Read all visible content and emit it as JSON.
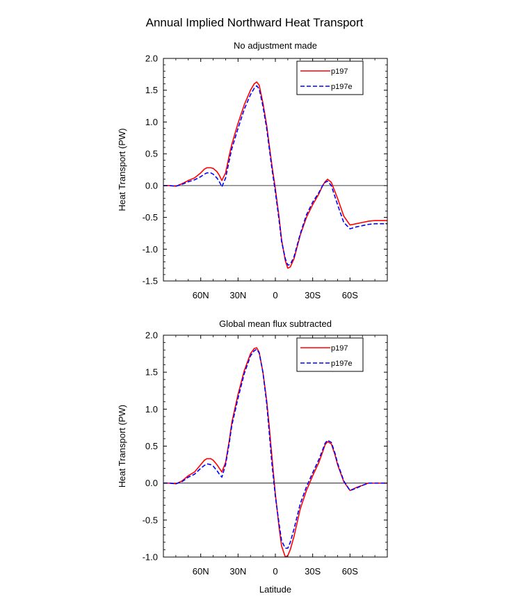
{
  "figure": {
    "title": "Annual Implied Northward Heat Transport",
    "legend_labels": [
      "p197",
      "p197e"
    ]
  },
  "chart_data": [
    {
      "type": "line",
      "title": "No adjustment made",
      "xlabel": "",
      "ylabel": "Heat Transport (PW)",
      "xlim": [
        90,
        -90
      ],
      "ylim": [
        -1.5,
        2.0
      ],
      "xticks": [
        60,
        30,
        0,
        -30,
        -60
      ],
      "xtick_labels": [
        "60N",
        "30N",
        "0",
        "30S",
        "60S"
      ],
      "yticks": [
        -1.5,
        -1.0,
        -0.5,
        0.0,
        0.5,
        1.0,
        1.5,
        2.0
      ],
      "ytick_labels": [
        "-1.5",
        "-1.0",
        "-0.5",
        "0.0",
        "0.5",
        "1.0",
        "1.5",
        "2.0"
      ],
      "legend_position": "top-right",
      "x": [
        90,
        85,
        80,
        75,
        70,
        65,
        60,
        57,
        55,
        52,
        50,
        47,
        45,
        43,
        40,
        37,
        35,
        30,
        25,
        20,
        17,
        15,
        13,
        10,
        7,
        5,
        3,
        0,
        -3,
        -5,
        -8,
        -10,
        -12,
        -15,
        -20,
        -25,
        -30,
        -35,
        -38,
        -40,
        -42,
        -45,
        -48,
        -50,
        -55,
        -60,
        -65,
        -70,
        -75,
        -80,
        -85,
        -90
      ],
      "series": [
        {
          "name": "p197",
          "color": "#ff0000",
          "dash": "solid",
          "values": [
            0.0,
            0.0,
            -0.01,
            0.03,
            0.08,
            0.12,
            0.2,
            0.26,
            0.28,
            0.28,
            0.27,
            0.22,
            0.16,
            0.08,
            0.2,
            0.48,
            0.65,
            0.98,
            1.27,
            1.5,
            1.6,
            1.63,
            1.58,
            1.3,
            0.95,
            0.65,
            0.35,
            -0.05,
            -0.5,
            -0.85,
            -1.18,
            -1.3,
            -1.28,
            -1.15,
            -0.78,
            -0.5,
            -0.3,
            -0.13,
            0.0,
            0.06,
            0.1,
            0.05,
            -0.1,
            -0.2,
            -0.48,
            -0.62,
            -0.6,
            -0.58,
            -0.56,
            -0.55,
            -0.55,
            -0.55
          ]
        },
        {
          "name": "p197e",
          "color": "#0000ff",
          "dash": "dashed",
          "values": [
            0.0,
            0.0,
            -0.01,
            0.02,
            0.06,
            0.09,
            0.14,
            0.18,
            0.2,
            0.2,
            0.18,
            0.12,
            0.06,
            -0.02,
            0.12,
            0.4,
            0.58,
            0.9,
            1.2,
            1.43,
            1.53,
            1.57,
            1.52,
            1.25,
            0.9,
            0.6,
            0.3,
            -0.1,
            -0.55,
            -0.88,
            -1.15,
            -1.25,
            -1.24,
            -1.12,
            -0.76,
            -0.46,
            -0.26,
            -0.11,
            0.0,
            0.05,
            0.07,
            0.0,
            -0.18,
            -0.3,
            -0.58,
            -0.68,
            -0.65,
            -0.63,
            -0.61,
            -0.6,
            -0.6,
            -0.6
          ]
        }
      ]
    },
    {
      "type": "line",
      "title": "Global mean flux subtracted",
      "xlabel": "Latitude",
      "ylabel": "Heat Transport (PW)",
      "xlim": [
        90,
        -90
      ],
      "ylim": [
        -1.0,
        2.0
      ],
      "xticks": [
        60,
        30,
        0,
        -30,
        -60
      ],
      "xtick_labels": [
        "60N",
        "30N",
        "0",
        "30S",
        "60S"
      ],
      "yticks": [
        -1.0,
        -0.5,
        0.0,
        0.5,
        1.0,
        1.5,
        2.0
      ],
      "ytick_labels": [
        "-1.0",
        "-0.5",
        "0.0",
        "0.5",
        "1.0",
        "1.5",
        "2.0"
      ],
      "legend_position": "top-right",
      "x": [
        90,
        85,
        80,
        75,
        70,
        65,
        60,
        57,
        55,
        52,
        50,
        47,
        45,
        43,
        40,
        37,
        35,
        30,
        25,
        20,
        17,
        15,
        13,
        10,
        7,
        5,
        3,
        0,
        -3,
        -5,
        -8,
        -10,
        -12,
        -15,
        -20,
        -25,
        -30,
        -35,
        -38,
        -40,
        -42,
        -45,
        -48,
        -50,
        -55,
        -60,
        -65,
        -70,
        -75,
        -80,
        -85,
        -90
      ],
      "series": [
        {
          "name": "p197",
          "color": "#ff0000",
          "dash": "solid",
          "values": [
            0.0,
            0.0,
            -0.01,
            0.03,
            0.1,
            0.15,
            0.25,
            0.31,
            0.33,
            0.33,
            0.31,
            0.25,
            0.2,
            0.15,
            0.28,
            0.58,
            0.82,
            1.2,
            1.52,
            1.75,
            1.82,
            1.83,
            1.77,
            1.5,
            1.12,
            0.78,
            0.4,
            -0.15,
            -0.6,
            -0.85,
            -1.0,
            -0.98,
            -0.9,
            -0.72,
            -0.35,
            -0.1,
            0.1,
            0.28,
            0.42,
            0.52,
            0.56,
            0.53,
            0.38,
            0.25,
            0.02,
            -0.1,
            -0.06,
            -0.03,
            0.0,
            0.0,
            0.0,
            0.0
          ]
        },
        {
          "name": "p197e",
          "color": "#0000ff",
          "dash": "dashed",
          "values": [
            0.0,
            0.0,
            -0.01,
            0.02,
            0.08,
            0.12,
            0.2,
            0.24,
            0.26,
            0.25,
            0.23,
            0.17,
            0.12,
            0.08,
            0.25,
            0.55,
            0.78,
            1.15,
            1.48,
            1.72,
            1.79,
            1.81,
            1.76,
            1.5,
            1.08,
            0.7,
            0.3,
            -0.18,
            -0.55,
            -0.78,
            -0.88,
            -0.88,
            -0.8,
            -0.62,
            -0.28,
            -0.05,
            0.14,
            0.32,
            0.45,
            0.54,
            0.58,
            0.55,
            0.4,
            0.27,
            0.03,
            -0.1,
            -0.07,
            -0.03,
            0.0,
            0.0,
            0.0,
            0.0
          ]
        }
      ]
    }
  ]
}
